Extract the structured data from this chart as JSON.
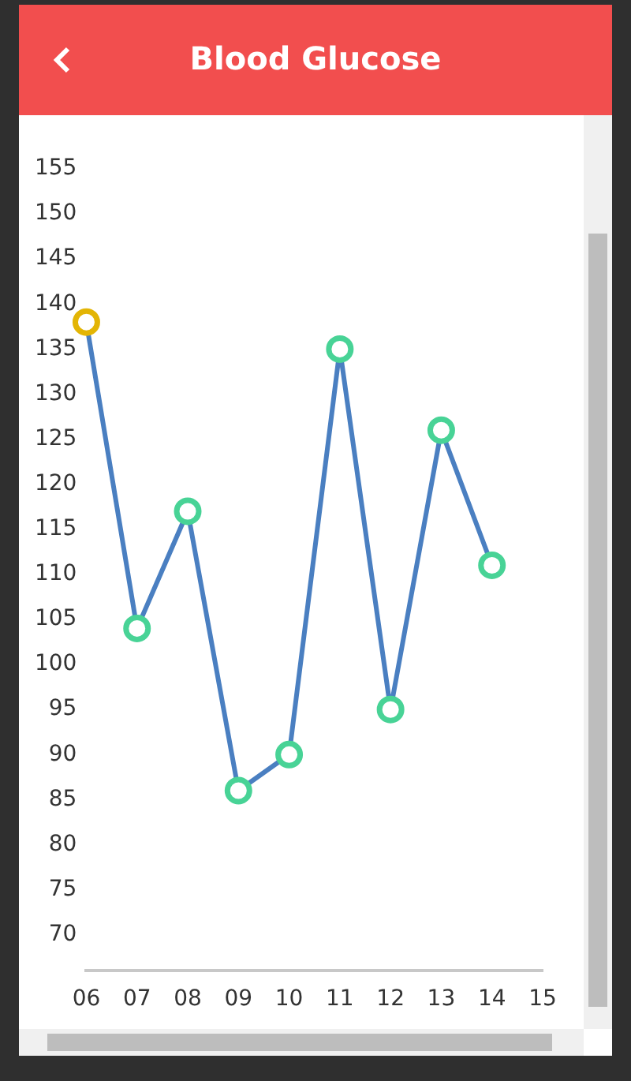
{
  "chart_data": {
    "type": "line",
    "title": "Blood Glucose",
    "categories": [
      "06",
      "07",
      "08",
      "09",
      "10",
      "11",
      "12",
      "13",
      "14",
      "15"
    ],
    "series": [
      {
        "color": "#4a7fc1",
        "colors": [
          "#e3b505",
          "#48d396",
          "#48d396",
          "#48d396",
          "#48d396",
          "#48d396",
          "#48d396",
          "#48d396",
          "#48d396",
          null
        ],
        "values": [
          138,
          104,
          117,
          86,
          90,
          135,
          95,
          126,
          111,
          null
        ]
      }
    ],
    "ylim": [
      66,
      155
    ],
    "yticks": [
      70,
      75,
      80,
      85,
      90,
      95,
      100,
      105,
      110,
      115,
      120,
      125,
      130,
      135,
      140,
      145,
      150,
      155
    ],
    "grid": false,
    "legend": false,
    "marker": "circle",
    "line_style": "solid"
  }
}
